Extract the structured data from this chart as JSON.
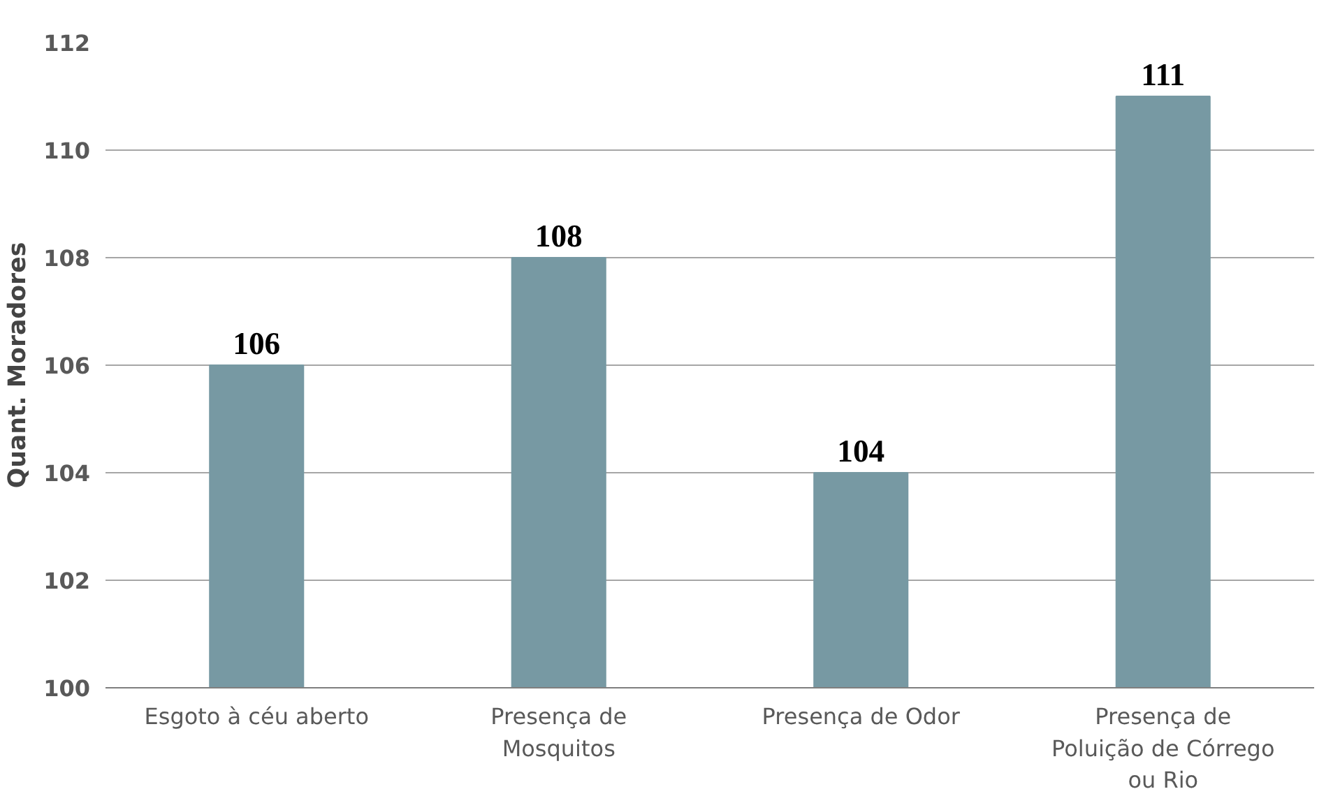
{
  "chart_data": {
    "type": "bar",
    "ylabel": "Quant. Moradores",
    "categories": [
      "Esgoto à céu aberto",
      "Presença de Mosquitos",
      "Presença de Odor",
      "Presença de Poluição de Córrego ou Rio"
    ],
    "values": [
      106,
      108,
      104,
      111
    ],
    "color": "#7799a3",
    "ylim": [
      100,
      112
    ],
    "yticks": [
      100,
      102,
      104,
      106,
      108,
      110,
      112
    ],
    "grid": "y",
    "data_labels": true
  }
}
